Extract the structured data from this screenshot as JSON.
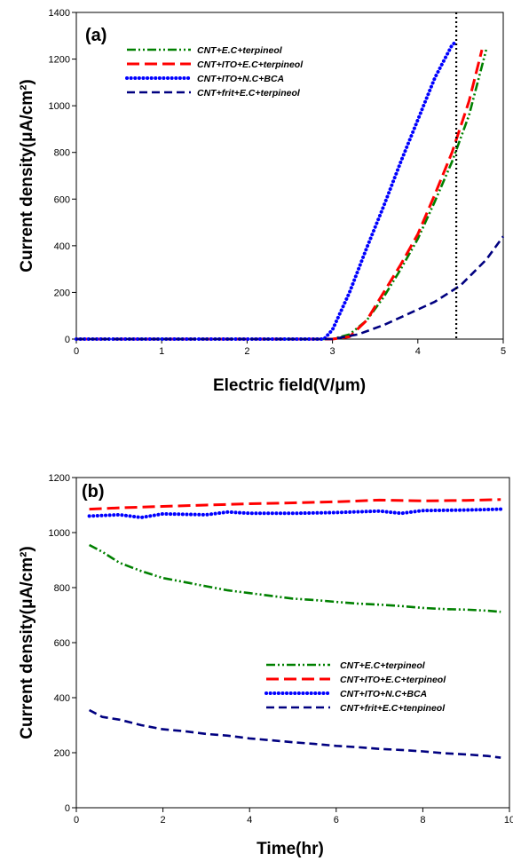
{
  "chart_data": [
    {
      "type": "line",
      "panel_label": "(a)",
      "xlabel": "Electric field(V/μm)",
      "ylabel": "Current density(μA/cm²)",
      "xlim": [
        0,
        5
      ],
      "ylim": [
        0,
        1400
      ],
      "x_ticks": [
        "0",
        "1",
        "2",
        "3",
        "4",
        "5"
      ],
      "y_ticks": [
        "0",
        "200",
        "400",
        "600",
        "800",
        "1000",
        "1200",
        "1400"
      ],
      "grid": false,
      "legend_position": "top-center",
      "reference_line": {
        "axis": "x",
        "value": 4.45,
        "style": "dotted",
        "color": "#000000"
      },
      "series": [
        {
          "name": "CNT+E.C+terpineol",
          "color": "#008000",
          "style": "dash-dot-dot",
          "x": [
            0,
            1,
            2,
            3.0,
            3.2,
            3.4,
            3.6,
            3.8,
            4.0,
            4.2,
            4.4,
            4.6,
            4.8
          ],
          "y": [
            0,
            0,
            0,
            0,
            20,
            80,
            180,
            300,
            430,
            590,
            760,
            960,
            1240
          ]
        },
        {
          "name": "CNT+ITO+E.C+terpineol",
          "color": "#ff0000",
          "style": "long-dash",
          "x": [
            0,
            1,
            2,
            3.0,
            3.2,
            3.4,
            3.6,
            3.8,
            4.0,
            4.2,
            4.4,
            4.6,
            4.75
          ],
          "y": [
            0,
            0,
            0,
            0,
            10,
            80,
            200,
            320,
            450,
            620,
            800,
            1020,
            1240
          ]
        },
        {
          "name": "CNT+ITO+N.C+BCA",
          "color": "#0000ff",
          "style": "dotted",
          "x": [
            0,
            1,
            2,
            2.9,
            3.0,
            3.2,
            3.4,
            3.6,
            3.8,
            4.0,
            4.2,
            4.4,
            4.45
          ],
          "y": [
            0,
            0,
            0,
            0,
            40,
            200,
            390,
            570,
            760,
            940,
            1120,
            1260,
            1275
          ]
        },
        {
          "name": "CNT+frit+E.C+terpineol",
          "color": "#000080",
          "style": "dash",
          "x": [
            0,
            1,
            2,
            3.0,
            3.3,
            3.6,
            3.9,
            4.2,
            4.5,
            4.8,
            5.0
          ],
          "y": [
            0,
            0,
            0,
            0,
            20,
            60,
            110,
            160,
            230,
            340,
            440
          ]
        }
      ]
    },
    {
      "type": "line",
      "panel_label": "(b)",
      "xlabel": "Time(hr)",
      "ylabel": "Current density(μA/cm²)",
      "xlim": [
        0,
        10
      ],
      "ylim": [
        0,
        1200
      ],
      "x_ticks": [
        "0",
        "2",
        "4",
        "6",
        "8",
        "10"
      ],
      "y_ticks": [
        "0",
        "200",
        "400",
        "600",
        "800",
        "1000",
        "1200"
      ],
      "grid": false,
      "legend_position": "center-right",
      "series": [
        {
          "name": "CNT+E.C+terpineol",
          "color": "#008000",
          "style": "dash-dot-dot",
          "x": [
            0.3,
            0.6,
            1,
            1.5,
            2,
            2.5,
            3,
            3.5,
            4,
            4.5,
            5,
            5.5,
            6,
            6.5,
            7,
            7.5,
            8,
            8.5,
            9,
            9.5,
            9.8
          ],
          "y": [
            955,
            930,
            890,
            860,
            835,
            820,
            805,
            790,
            780,
            770,
            760,
            755,
            748,
            742,
            738,
            733,
            726,
            722,
            720,
            716,
            712
          ]
        },
        {
          "name": "CNT+ITO+E.C+terpineol",
          "color": "#ff0000",
          "style": "long-dash",
          "x": [
            0.3,
            1,
            2,
            3,
            4,
            5,
            6,
            7,
            8,
            9,
            9.8
          ],
          "y": [
            1085,
            1090,
            1095,
            1100,
            1105,
            1108,
            1112,
            1118,
            1115,
            1117,
            1120
          ]
        },
        {
          "name": "CNT+ITO+N.C+BCA",
          "color": "#0000ff",
          "style": "dotted",
          "x": [
            0.3,
            1,
            1.5,
            2,
            3,
            3.5,
            4,
            5,
            6,
            7,
            7.5,
            8,
            9,
            9.8
          ],
          "y": [
            1060,
            1065,
            1055,
            1068,
            1065,
            1075,
            1070,
            1070,
            1073,
            1078,
            1070,
            1080,
            1082,
            1085
          ]
        },
        {
          "name": "CNT+frit+E.C+tenpineol",
          "color": "#000080",
          "style": "dash",
          "x": [
            0.3,
            0.6,
            1,
            1.5,
            2,
            2.5,
            3,
            3.5,
            4,
            4.5,
            5,
            5.5,
            6,
            6.5,
            7,
            7.5,
            8,
            8.5,
            9,
            9.5,
            9.8
          ],
          "y": [
            355,
            330,
            320,
            300,
            285,
            278,
            268,
            262,
            252,
            245,
            238,
            232,
            225,
            220,
            214,
            210,
            205,
            198,
            194,
            188,
            182
          ]
        }
      ]
    }
  ]
}
